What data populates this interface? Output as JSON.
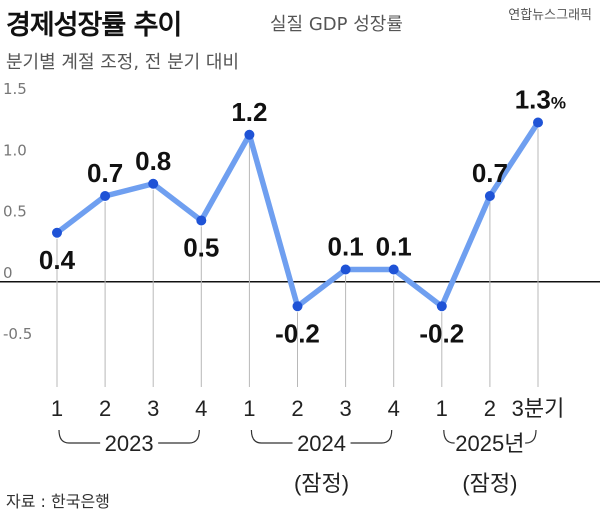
{
  "header": {
    "title": "경제성장률 추이",
    "subtitle": "실질 GDP 성장률",
    "credit": "연합뉴스그래픽",
    "note": "분기별 계절 조정, 전 분기 대비"
  },
  "source": "자료 : 한국은행",
  "chart_data": {
    "type": "line",
    "title": "경제성장률 추이",
    "subtitle": "실질 GDP 성장률",
    "unit": "%",
    "categories": [
      "1",
      "2",
      "3",
      "4",
      "1",
      "2",
      "3",
      "4",
      "1",
      "2",
      "3분기"
    ],
    "year_groups": [
      {
        "label": "2023",
        "sub": "",
        "start": 0,
        "end": 3
      },
      {
        "label": "2024",
        "sub": "(잠정)",
        "start": 4,
        "end": 7
      },
      {
        "label": "2025년",
        "sub": "(잠정)",
        "start": 8,
        "end": 10
      }
    ],
    "values": [
      0.4,
      0.7,
      0.8,
      0.5,
      1.2,
      -0.2,
      0.1,
      0.1,
      -0.2,
      0.7,
      1.3
    ],
    "data_labels": [
      "0.4",
      "0.7",
      "0.8",
      "0.5",
      "1.2",
      "-0.2",
      "0.1",
      "0.1",
      "-0.2",
      "0.7",
      "1.3"
    ],
    "yticks": [
      1.5,
      1.0,
      0.5,
      0,
      -0.5
    ],
    "ytick_labels": [
      "1.5",
      "1.0",
      "0.5",
      "0",
      "-0.5"
    ],
    "ylim": [
      -0.5,
      1.5
    ],
    "grid": false,
    "line_color": "#6f9ff0",
    "point_color": "#1f53d6",
    "zero_line_color": "#111111"
  }
}
